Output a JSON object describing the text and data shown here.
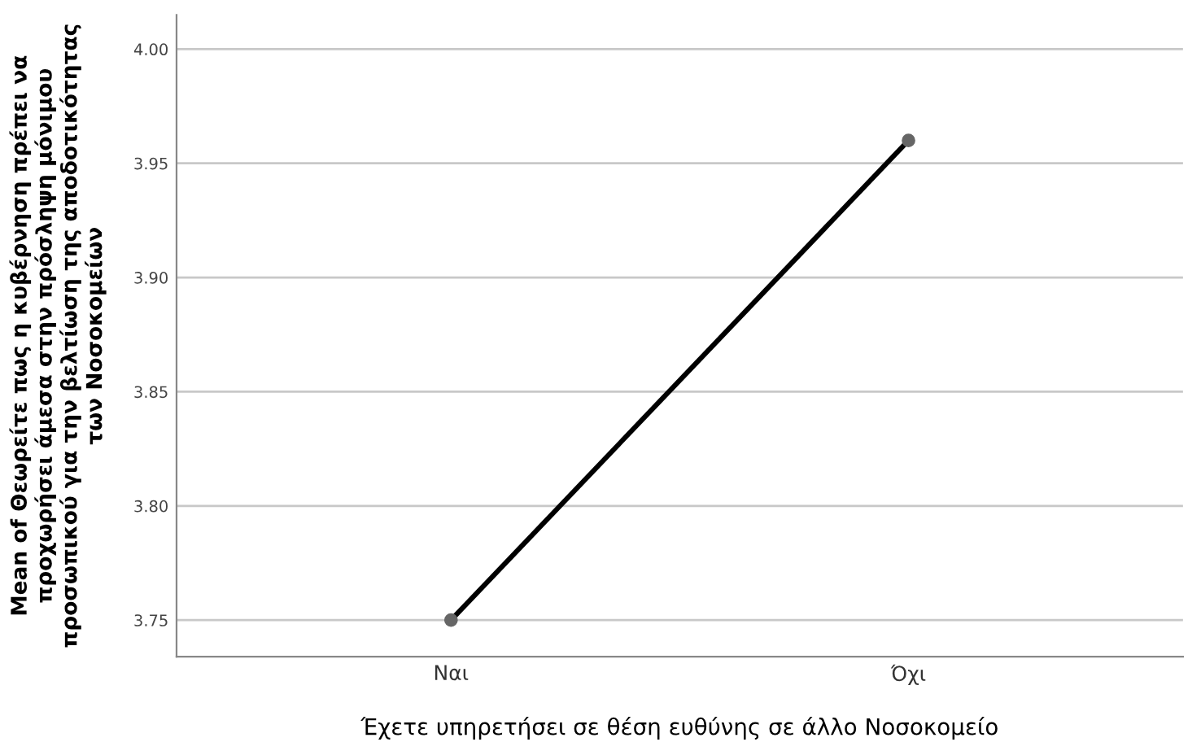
{
  "chart_data": {
    "type": "line",
    "xlabel": "Έχετε υπηρετήσει σε θέση ευθύνης σε άλλο Νοσοκομείο",
    "ylabel": "Mean of Θεωρείτε πως η κυβέρνηση πρέπει να προχωρήσει άμεσα στην πρόσληψη μόνιμου προσωπικού για την βελτίωση της αποδοτικότητας των Νοσοκομείων",
    "categories": [
      "Ναι",
      "Όχι"
    ],
    "series": [
      {
        "color": "#000000",
        "values": [
          3.75,
          3.96
        ]
      }
    ],
    "ylim": [
      3.734,
      4.015
    ],
    "yticks": [
      {
        "value": 3.75,
        "label": "3.75"
      },
      {
        "value": 3.8,
        "label": "3.80"
      },
      {
        "value": 3.85,
        "label": "3.85"
      },
      {
        "value": 3.9,
        "label": "3.90"
      },
      {
        "value": 3.95,
        "label": "3.95"
      },
      {
        "value": 4.0,
        "label": "4.00"
      }
    ],
    "grid": "y",
    "marker": "circle",
    "line_style": "solid"
  }
}
